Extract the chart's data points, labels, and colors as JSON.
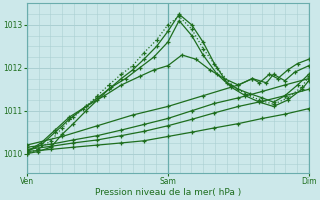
{
  "xlabel": "Pression niveau de la mer( hPa )",
  "xtick_labels": [
    "Ven",
    "Sam",
    "Dim"
  ],
  "xtick_positions": [
    0.0,
    1.0,
    2.0
  ],
  "ytick_labels": [
    "1010",
    "1011",
    "1012",
    "1013"
  ],
  "ytick_values": [
    1010,
    1011,
    1012,
    1013
  ],
  "ylim": [
    1009.55,
    1013.5
  ],
  "xlim": [
    0.0,
    2.0
  ],
  "bg_color": "#cce8ea",
  "grid_color": "#aacfd2",
  "line_color": "#1e6e1e",
  "series": [
    {
      "x": [
        0.0,
        0.08,
        0.17,
        0.25,
        0.33,
        0.42,
        0.5,
        0.58,
        0.67,
        0.75,
        0.83,
        0.92,
        1.0,
        1.08,
        1.17,
        1.25,
        1.33,
        1.42,
        1.5,
        1.58,
        1.67,
        1.75,
        1.83,
        1.92,
        2.0
      ],
      "y": [
        1010.0,
        1010.05,
        1010.15,
        1010.45,
        1010.7,
        1011.0,
        1011.25,
        1011.5,
        1011.75,
        1011.95,
        1012.2,
        1012.5,
        1012.85,
        1013.25,
        1013.0,
        1012.6,
        1012.1,
        1011.65,
        1011.5,
        1011.4,
        1011.3,
        1011.2,
        1011.35,
        1011.6,
        1011.85
      ],
      "style": "-",
      "marker": "+"
    },
    {
      "x": [
        0.0,
        0.1,
        0.2,
        0.3,
        0.4,
        0.5,
        0.6,
        0.7,
        0.8,
        0.9,
        1.0,
        1.08,
        1.17,
        1.25,
        1.35,
        1.45,
        1.55,
        1.65,
        1.75,
        1.85,
        1.95,
        2.0
      ],
      "y": [
        1010.05,
        1010.2,
        1010.5,
        1010.8,
        1011.05,
        1011.3,
        1011.55,
        1011.75,
        1012.0,
        1012.25,
        1012.6,
        1013.1,
        1012.75,
        1012.3,
        1011.85,
        1011.55,
        1011.35,
        1011.2,
        1011.1,
        1011.25,
        1011.5,
        1011.7
      ],
      "style": "-",
      "marker": "+"
    },
    {
      "x": [
        0.0,
        0.08,
        0.17,
        0.25,
        0.33,
        0.42,
        0.5,
        0.58,
        0.67,
        0.75,
        0.83,
        0.92,
        1.0,
        1.08,
        1.17,
        1.25,
        1.35,
        1.45,
        1.55,
        1.65,
        1.75,
        1.85,
        1.95,
        2.0
      ],
      "y": [
        1010.0,
        1010.1,
        1010.3,
        1010.6,
        1010.85,
        1011.1,
        1011.35,
        1011.6,
        1011.85,
        1012.05,
        1012.35,
        1012.65,
        1013.0,
        1013.2,
        1012.9,
        1012.45,
        1012.0,
        1011.6,
        1011.4,
        1011.25,
        1011.15,
        1011.3,
        1011.55,
        1011.8
      ],
      "style": ":",
      "marker": "+"
    },
    {
      "x": [
        0.0,
        0.17,
        0.33,
        0.5,
        0.67,
        0.83,
        1.0,
        1.17,
        1.33,
        1.5,
        1.67,
        1.83,
        2.0
      ],
      "y": [
        1010.05,
        1010.1,
        1010.15,
        1010.2,
        1010.25,
        1010.3,
        1010.4,
        1010.5,
        1010.6,
        1010.7,
        1010.82,
        1010.92,
        1011.05
      ],
      "style": "-",
      "marker": "+"
    },
    {
      "x": [
        0.0,
        0.17,
        0.33,
        0.5,
        0.67,
        0.83,
        1.0,
        1.17,
        1.33,
        1.5,
        1.67,
        1.83,
        2.0
      ],
      "y": [
        1010.1,
        1010.17,
        1010.25,
        1010.32,
        1010.42,
        1010.52,
        1010.65,
        1010.8,
        1010.95,
        1011.1,
        1011.22,
        1011.35,
        1011.5
      ],
      "style": "-",
      "marker": "+"
    },
    {
      "x": [
        0.0,
        0.17,
        0.33,
        0.5,
        0.67,
        0.83,
        1.0,
        1.17,
        1.33,
        1.5,
        1.67,
        1.83,
        2.0
      ],
      "y": [
        1010.15,
        1010.22,
        1010.32,
        1010.42,
        1010.55,
        1010.68,
        1010.82,
        1011.0,
        1011.17,
        1011.3,
        1011.45,
        1011.6,
        1011.75
      ],
      "style": "-",
      "marker": "+"
    },
    {
      "x": [
        0.0,
        0.25,
        0.5,
        0.75,
        1.0,
        1.25,
        1.5,
        1.6,
        1.7,
        1.75,
        1.83,
        1.9,
        2.0
      ],
      "y": [
        1010.2,
        1010.4,
        1010.65,
        1010.9,
        1011.1,
        1011.35,
        1011.6,
        1011.75,
        1011.65,
        1011.85,
        1011.7,
        1011.9,
        1012.05
      ],
      "style": "-",
      "marker": "+"
    },
    {
      "x": [
        0.0,
        0.1,
        0.2,
        0.3,
        0.42,
        0.55,
        0.67,
        0.8,
        0.9,
        1.0,
        1.1,
        1.2,
        1.3,
        1.4,
        1.5,
        1.6,
        1.65,
        1.72,
        1.78,
        1.85,
        1.92,
        2.0
      ],
      "y": [
        1010.05,
        1010.25,
        1010.55,
        1010.85,
        1011.1,
        1011.35,
        1011.6,
        1011.8,
        1011.95,
        1012.05,
        1012.3,
        1012.2,
        1011.95,
        1011.75,
        1011.6,
        1011.75,
        1011.65,
        1011.85,
        1011.75,
        1011.95,
        1012.1,
        1012.2
      ],
      "style": "-",
      "marker": "+"
    }
  ]
}
